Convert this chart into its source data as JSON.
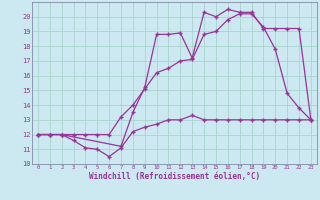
{
  "xlabel": "Windchill (Refroidissement éolien,°C)",
  "bg_color": "#cce8f0",
  "grid_color": "#aad4cc",
  "line_color": "#993399",
  "xlim": [
    -0.5,
    23.5
  ],
  "ylim": [
    10,
    21
  ],
  "yticks": [
    10,
    11,
    12,
    13,
    14,
    15,
    16,
    17,
    18,
    19,
    20
  ],
  "xticks": [
    0,
    1,
    2,
    3,
    4,
    5,
    6,
    7,
    8,
    9,
    10,
    11,
    12,
    13,
    14,
    15,
    16,
    17,
    18,
    19,
    20,
    21,
    22,
    23
  ],
  "series1_x": [
    0,
    1,
    2,
    3,
    4,
    5,
    6,
    7,
    8,
    9,
    10,
    11,
    12,
    13,
    14,
    15,
    16,
    17,
    18,
    19,
    20,
    21,
    22,
    23
  ],
  "series1_y": [
    12,
    12,
    12,
    11.6,
    11.1,
    11.0,
    10.5,
    11.1,
    12.2,
    12.5,
    12.7,
    13.0,
    13.0,
    13.3,
    13.0,
    13.0,
    13.0,
    13.0,
    13.0,
    13.0,
    13.0,
    13.0,
    13.0,
    13.0
  ],
  "series2_x": [
    0,
    1,
    2,
    3,
    4,
    5,
    6,
    7,
    8,
    9,
    10,
    11,
    12,
    13,
    14,
    15,
    16,
    17,
    18,
    19,
    20,
    21,
    22,
    23
  ],
  "series2_y": [
    12,
    12,
    12,
    12,
    12,
    12,
    12,
    13.2,
    14.0,
    15.1,
    16.2,
    16.5,
    17.0,
    17.1,
    18.8,
    19.0,
    19.8,
    20.2,
    20.2,
    19.3,
    17.8,
    14.8,
    13.8,
    13.0
  ],
  "series3_x": [
    0,
    1,
    2,
    7,
    8,
    9,
    10,
    11,
    12,
    13,
    14,
    15,
    16,
    17,
    18,
    19,
    20,
    21,
    22,
    23
  ],
  "series3_y": [
    12,
    12,
    12,
    11.2,
    13.5,
    15.2,
    18.8,
    18.8,
    18.9,
    17.2,
    20.3,
    20.0,
    20.5,
    20.3,
    20.3,
    19.2,
    19.2,
    19.2,
    19.2,
    13.0
  ]
}
